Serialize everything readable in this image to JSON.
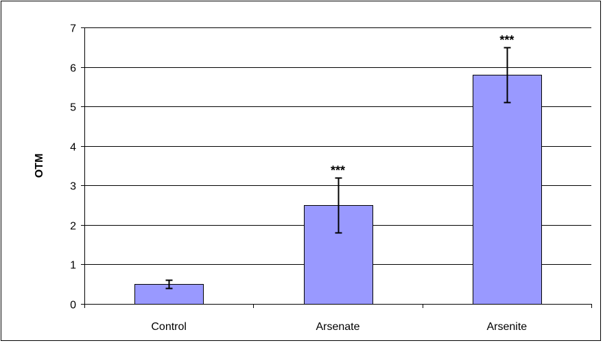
{
  "chart_data": {
    "type": "bar",
    "categories": [
      "Control",
      "Arsenate",
      "Arsenite"
    ],
    "values": [
      0.5,
      2.5,
      5.8
    ],
    "error": [
      0.1,
      0.7,
      0.7
    ],
    "annotations": [
      "",
      "***",
      "***"
    ],
    "title": "",
    "xlabel": "",
    "ylabel": "OTM",
    "ylim": [
      0,
      7
    ],
    "yticks": [
      0,
      1,
      2,
      3,
      4,
      5,
      6,
      7
    ],
    "grid": true,
    "legend": "none",
    "colors": {
      "bar_fill": "#9999ff",
      "bar_stroke": "#000000",
      "grid": "#000000",
      "axis": "#000000"
    }
  }
}
